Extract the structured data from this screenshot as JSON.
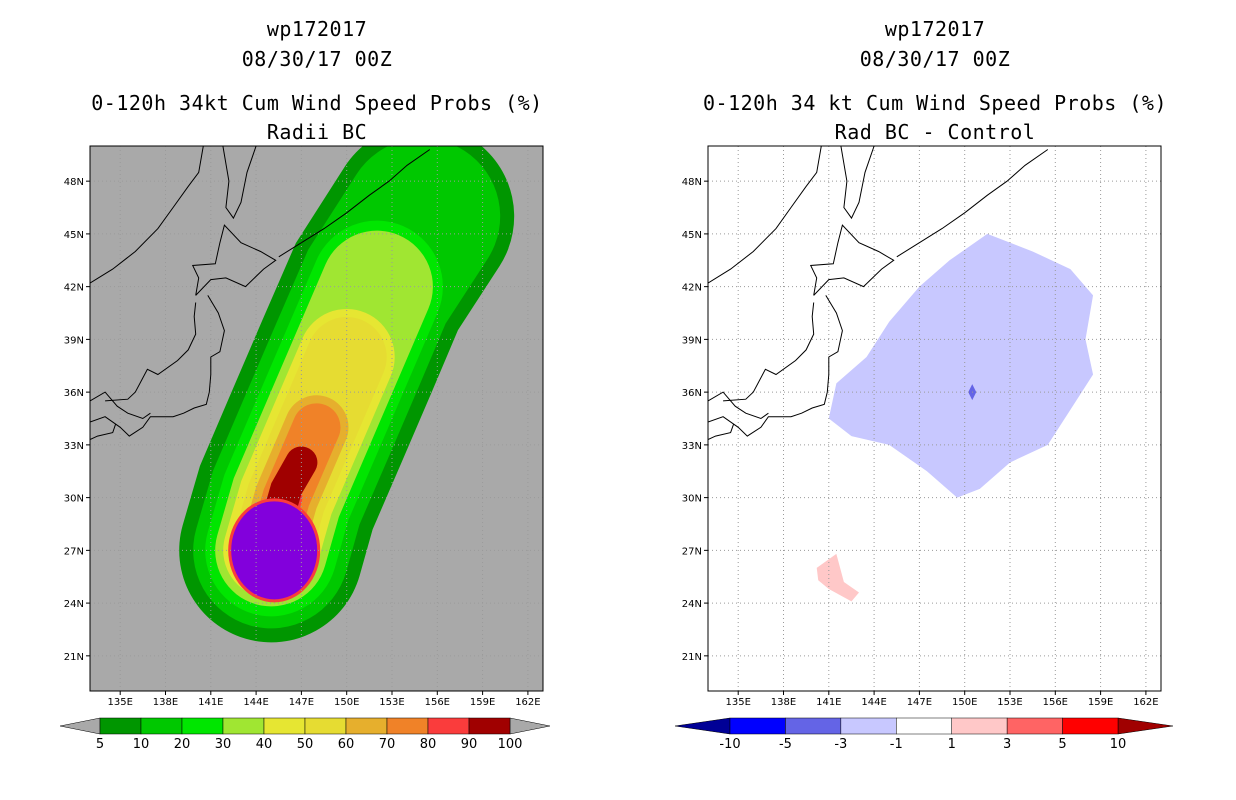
{
  "panels": {
    "left": {
      "title_line1": "wp172017",
      "title_line2": "08/30/17 00Z",
      "title_line3": "0-120h 34kt Cum Wind Speed Probs (%)",
      "title_line4": "Radii BC"
    },
    "right": {
      "title_line1": "wp172017",
      "title_line2": "08/30/17 00Z",
      "title_line3": "0-120h 34 kt Cum Wind Speed Probs (%)",
      "title_line4": "Rad BC - Control"
    }
  },
  "axes": {
    "lon_labels": [
      "135E",
      "138E",
      "141E",
      "144E",
      "147E",
      "150E",
      "153E",
      "156E",
      "159E",
      "162E"
    ],
    "lat_labels": [
      "48N",
      "45N",
      "42N",
      "39N",
      "36N",
      "33N",
      "30N",
      "27N",
      "24N",
      "21N"
    ]
  },
  "colors": {
    "background_gray": "#a9a9a9",
    "coast": "#000000",
    "left_levels": [
      "#009600",
      "#00c800",
      "#00e600",
      "#a0e632",
      "#e6e632",
      "#e6dc32",
      "#e6af2d",
      "#f08228",
      "#fa3c3c",
      "#a00000",
      "#8200dc"
    ],
    "right_levels": [
      "#000096",
      "#0000ff",
      "#6464e6",
      "#c8c8ff",
      "#ffffff",
      "#ffc8c8",
      "#ff6464",
      "#ff0000",
      "#a00000"
    ]
  },
  "chart_data": [
    {
      "type": "heatmap",
      "title": "0-120h 34kt Cum Wind Speed Probs (%)",
      "subtitle": "Radii BC",
      "storm": "wp172017",
      "valid": "08/30/17 00Z",
      "xlim": [
        133,
        163
      ],
      "ylim": [
        19,
        50
      ],
      "levels": [
        5,
        10,
        20,
        30,
        40,
        50,
        60,
        70,
        80,
        90,
        100
      ],
      "colorbar_labels": [
        "5",
        "10",
        "20",
        "30",
        "40",
        "50",
        "60",
        "70",
        "80",
        "90",
        "100"
      ],
      "contour_max_region": {
        "center_lon": 145,
        "center_lat": 27,
        "value": ">100"
      },
      "track_axis_lonlat": [
        [
          145,
          27
        ],
        [
          146,
          30
        ],
        [
          148,
          34
        ],
        [
          150,
          38
        ],
        [
          152,
          42
        ],
        [
          155,
          46
        ]
      ]
    },
    {
      "type": "heatmap",
      "title": "0-120h 34 kt Cum Wind Speed Probs (%)",
      "subtitle": "Rad BC - Control",
      "storm": "wp172017",
      "valid": "08/30/17 00Z",
      "xlim": [
        133,
        163
      ],
      "ylim": [
        19,
        50
      ],
      "levels": [
        -10,
        -5,
        -3,
        -1,
        1,
        3,
        5,
        10
      ],
      "colorbar_labels": [
        "-10",
        "-5",
        "-3",
        "-1",
        "1",
        "3",
        "5",
        "10"
      ],
      "regions": [
        {
          "description": "broad area of -3 to -1 difference",
          "lon_range": [
            141,
            159
          ],
          "lat_range": [
            30,
            45
          ],
          "value_range": [
            -3,
            -1
          ]
        },
        {
          "description": "small -5 to -3 spot",
          "lon": 150.5,
          "lat": 36,
          "value_range": [
            -5,
            -3
          ]
        },
        {
          "description": "small 1 to 3 area",
          "lon_range": [
            140,
            143
          ],
          "lat_range": [
            24,
            26.5
          ],
          "value_range": [
            1,
            3
          ]
        }
      ]
    }
  ]
}
